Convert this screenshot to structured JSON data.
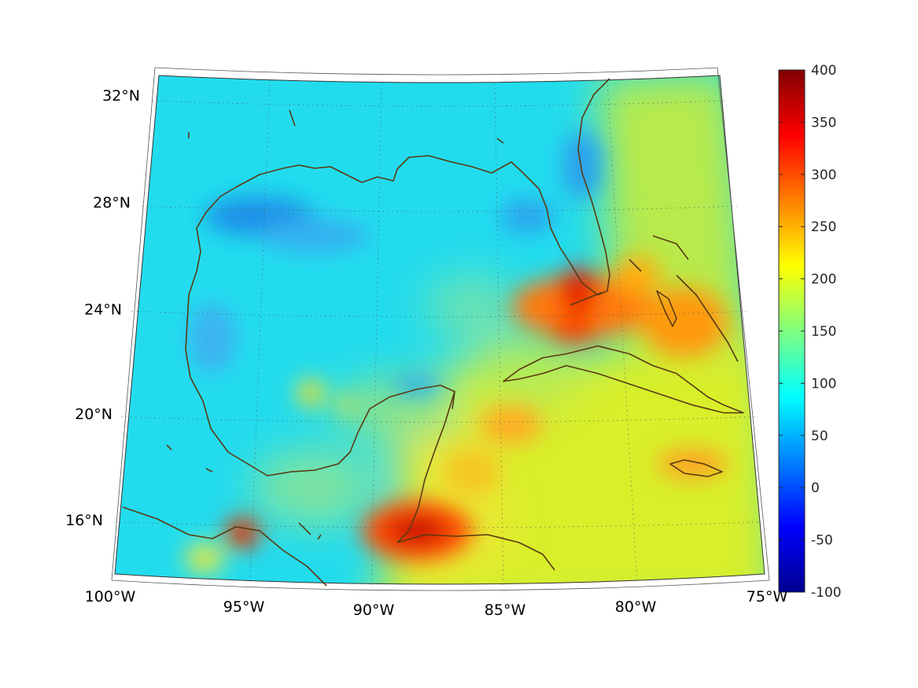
{
  "map": {
    "type": "projected-field-map",
    "region": "Gulf of Mexico and Caribbean",
    "lon_range": [
      -100,
      -75
    ],
    "lat_range": [
      14,
      33
    ],
    "lon_ticks": [
      "100°W",
      "95°W",
      "90°W",
      "85°W",
      "80°W",
      "75°W"
    ],
    "lat_ticks": [
      "32°N",
      "28°N",
      "24°N",
      "20°N",
      "16°N"
    ],
    "gridlines": true,
    "coastline_color": "#5a3a12"
  },
  "colorbar": {
    "min": -100,
    "max": 400,
    "colormap": "jet",
    "tick_labels": [
      "400",
      "350",
      "300",
      "250",
      "200",
      "150",
      "100",
      "50",
      "0",
      "-50",
      "-100"
    ]
  },
  "field_features": [
    {
      "description": "Florida Straits / south Florida maximum",
      "value": 330
    },
    {
      "description": "Bay of Campeche southwest maximum",
      "value": 380
    },
    {
      "description": "Gulf of Honduras maximum",
      "value": 360
    },
    {
      "description": "Bahamas elevated band",
      "value": 280
    },
    {
      "description": "Central Gulf background",
      "value": 100
    },
    {
      "description": "Northern Gulf low off Louisiana/Texas",
      "value": 50
    },
    {
      "description": "Caribbean background",
      "value": 185
    }
  ]
}
